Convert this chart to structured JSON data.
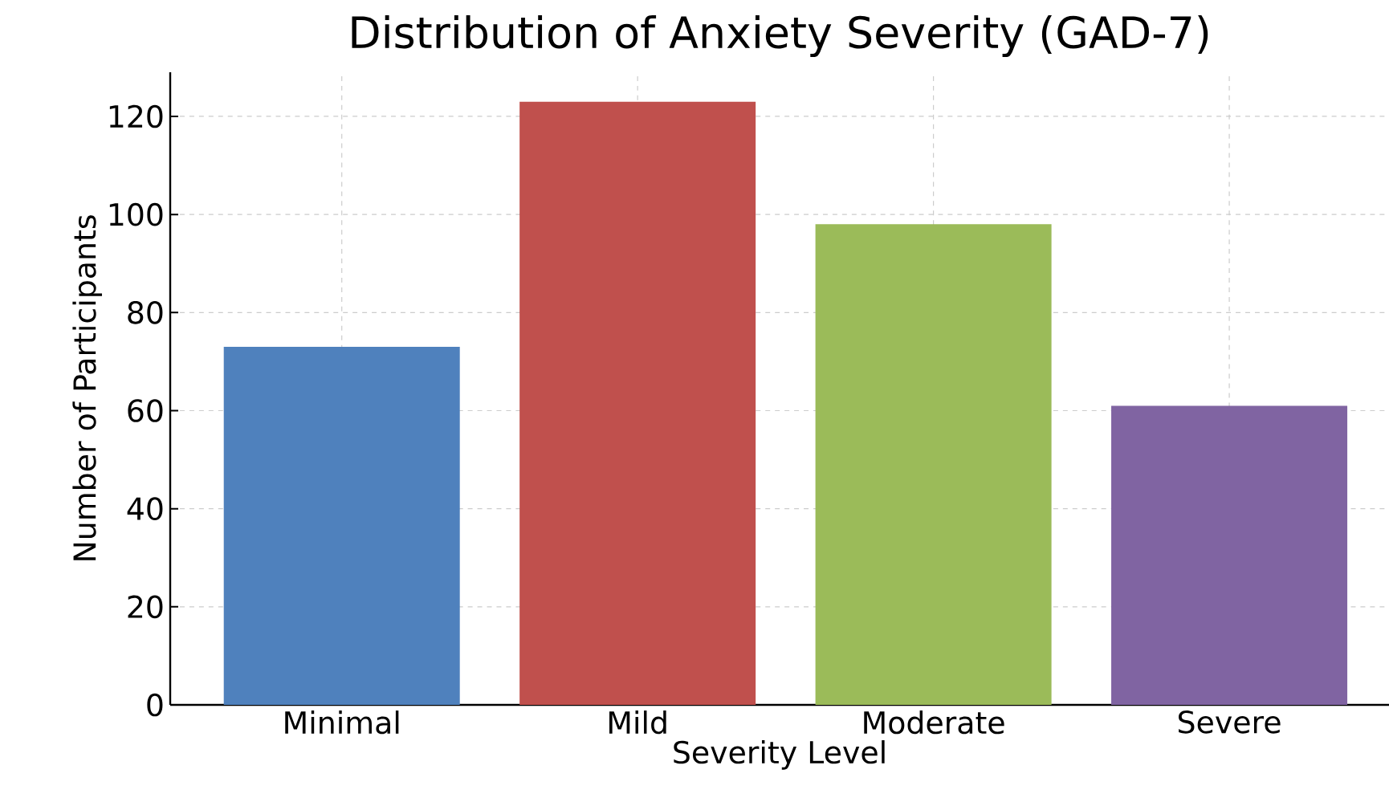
{
  "chart_data": {
    "type": "bar",
    "title": "Distribution of Anxiety Severity (GAD-7)",
    "xlabel": "Severity Level",
    "ylabel": "Number of Participants",
    "categories": [
      "Minimal",
      "Mild",
      "Moderate",
      "Severe"
    ],
    "values": [
      73,
      123,
      98,
      61
    ],
    "colors": [
      "#4f81bd",
      "#c0504d",
      "#9bbb59",
      "#8064a2"
    ],
    "ylim": [
      0,
      129
    ],
    "yticks": [
      0,
      20,
      40,
      60,
      80,
      100,
      120
    ],
    "grid": true
  }
}
